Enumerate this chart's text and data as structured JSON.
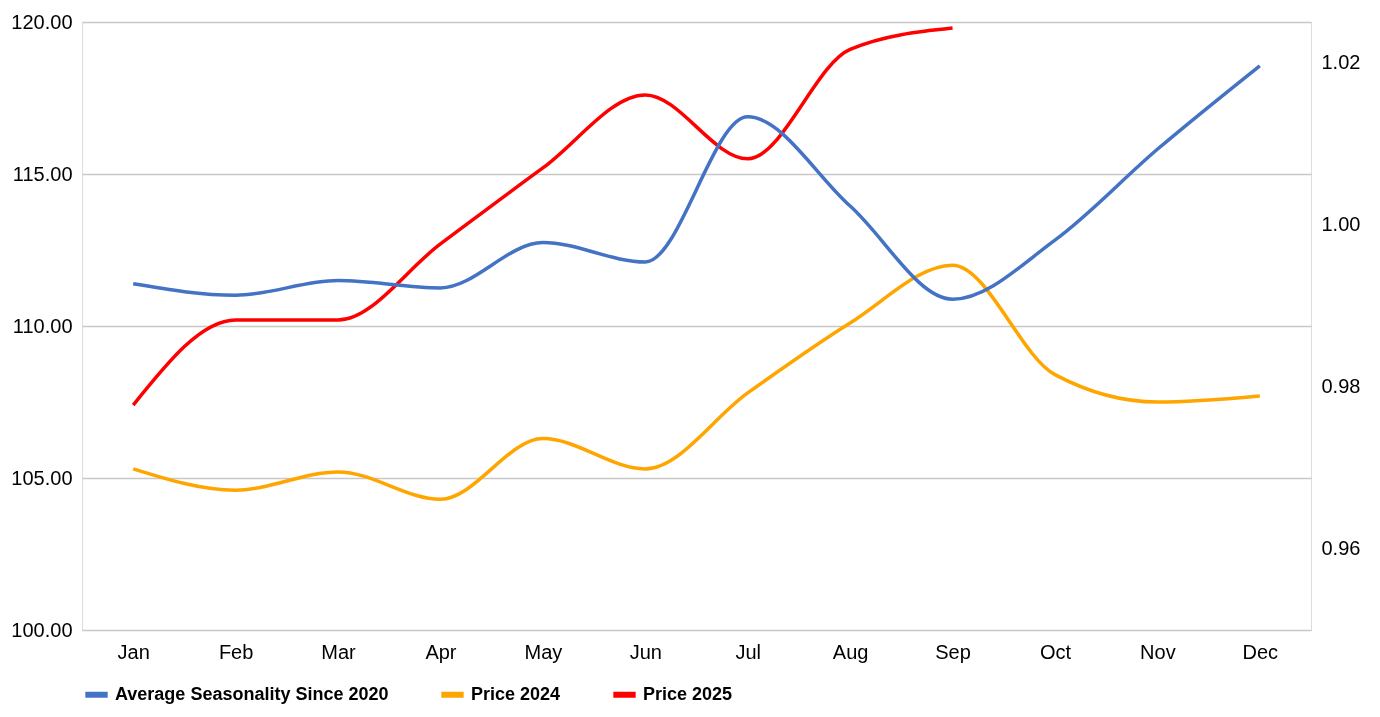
{
  "chart_data": {
    "type": "line",
    "categories": [
      "Jan",
      "Feb",
      "Mar",
      "Apr",
      "May",
      "Jun",
      "Jul",
      "Aug",
      "Sep",
      "Oct",
      "Nov",
      "Dec"
    ],
    "series": [
      {
        "name": "Average Seasonality Since 2020",
        "color": "#4472c4",
        "axis": "y2",
        "values": [
          0.9927,
          0.9913,
          0.9931,
          0.9922,
          0.9978,
          0.9954,
          1.0133,
          1.0023,
          0.9908,
          0.9981,
          1.0093,
          1.0196
        ]
      },
      {
        "name": "Price 2024",
        "color": "#ffa500",
        "values": [
          105.3,
          104.6,
          105.2,
          104.3,
          106.3,
          105.3,
          107.8,
          110.1,
          112.0,
          108.4,
          107.5,
          107.7
        ]
      },
      {
        "name": "Price 2025",
        "color": "#ff0000",
        "values": [
          107.4,
          110.2,
          110.2,
          112.7,
          115.2,
          117.6,
          115.5,
          119.1,
          119.8,
          null,
          null,
          null
        ]
      }
    ],
    "ylim": [
      100,
      120
    ],
    "yticks": [
      {
        "value": 100,
        "label": "100.00"
      },
      {
        "value": 105,
        "label": "105.00"
      },
      {
        "value": 110,
        "label": "110.00"
      },
      {
        "value": 115,
        "label": "115.00"
      },
      {
        "value": 120,
        "label": "120.00"
      }
    ],
    "y2lim": [
      0.95,
      1.025
    ],
    "y2ticks": [
      0.96,
      0.98,
      {
        "value": 1.0,
        "label": "1.00"
      },
      1.02
    ],
    "grid": "y",
    "legend": "bottom"
  }
}
